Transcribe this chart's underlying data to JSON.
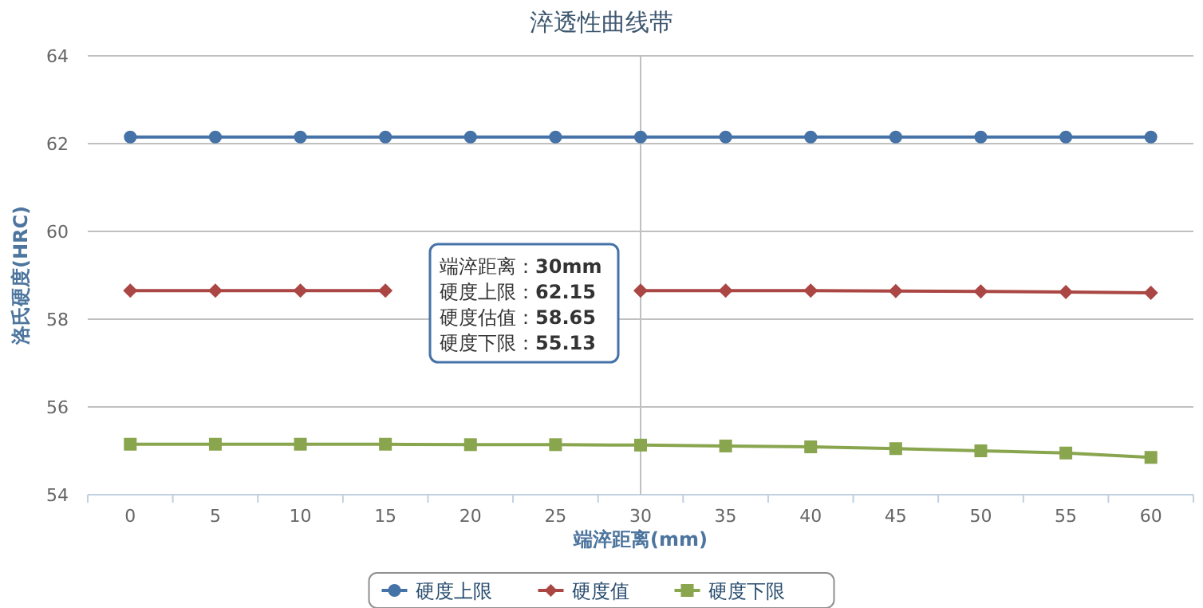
{
  "chart_data": {
    "type": "line",
    "title": "淬透性曲线带",
    "xlabel": "端淬距离(mm)",
    "ylabel": "洛氏硬度(HRC)",
    "categories": [
      "0",
      "5",
      "10",
      "15",
      "20",
      "25",
      "30",
      "35",
      "40",
      "45",
      "50",
      "55",
      "60"
    ],
    "series": [
      {
        "name": "硬度上限",
        "color": "#4572a7",
        "marker": "circle",
        "values": [
          62.15,
          62.15,
          62.15,
          62.15,
          62.15,
          62.15,
          62.15,
          62.15,
          62.15,
          62.15,
          62.15,
          62.15,
          62.15
        ]
      },
      {
        "name": "硬度值",
        "color": "#aa4643",
        "marker": "diamond",
        "values": [
          58.65,
          58.65,
          58.65,
          58.65,
          null,
          null,
          58.65,
          58.65,
          58.65,
          58.64,
          58.63,
          58.62,
          58.6
        ]
      },
      {
        "name": "硬度下限",
        "color": "#89a54e",
        "marker": "square",
        "values": [
          55.15,
          55.15,
          55.15,
          55.15,
          55.14,
          55.14,
          55.13,
          55.11,
          55.09,
          55.05,
          55.0,
          54.95,
          54.85
        ]
      }
    ],
    "ylim": [
      54,
      64
    ],
    "yticks": [
      54,
      56,
      58,
      60,
      62,
      64
    ],
    "grid": "y",
    "legend": "bottom",
    "line_style": "solid",
    "ref_lines": [
      {
        "axis": "x",
        "value": "30",
        "color": "#c0c0c0"
      }
    ],
    "annotations": [
      "端淬距离：**30mm**",
      "硬度上限：**62.15**",
      "硬度估值：**58.65**",
      "硬度下限：**55.13**"
    ]
  }
}
